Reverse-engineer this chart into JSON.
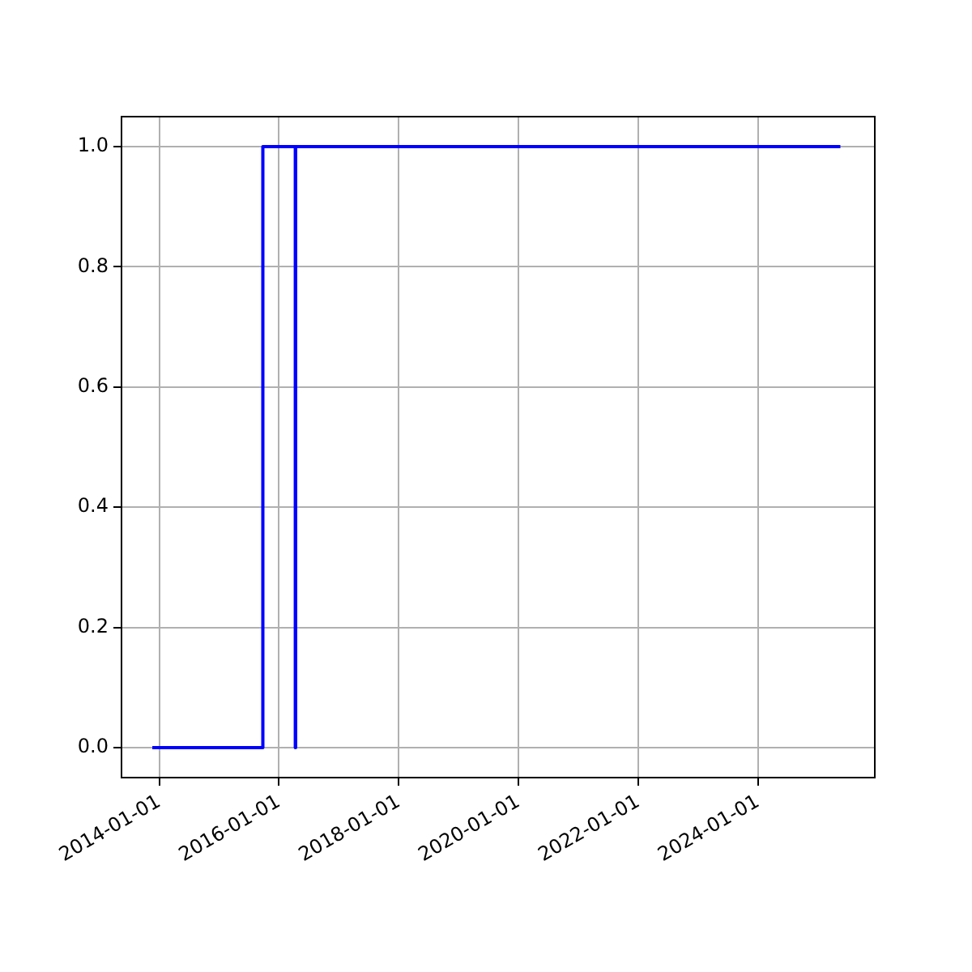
{
  "chart_data": {
    "type": "step",
    "x": [
      "2013-11-20",
      "2015-09-25",
      "2016-04-10",
      "2016-04-12",
      "2025-05-17"
    ],
    "series": [
      {
        "color": "#0000ff",
        "values": [
          0,
          1,
          0,
          1,
          1
        ]
      }
    ],
    "xlim": [
      "2013-05-16",
      "2025-12-13"
    ],
    "xticks": [
      "2014-01-01",
      "2016-01-01",
      "2018-01-01",
      "2020-01-01",
      "2022-01-01",
      "2024-01-01"
    ],
    "ylim": [
      -0.05,
      1.05
    ],
    "yticks": [
      {
        "value": 0,
        "label": "0.0"
      },
      {
        "value": 0.2,
        "label": "0.2"
      },
      {
        "value": 0.4,
        "label": "0.4"
      },
      {
        "value": 0.6,
        "label": "0.6"
      },
      {
        "value": 0.8,
        "label": "0.8"
      },
      {
        "value": 1,
        "label": "1.0"
      }
    ],
    "grid": true,
    "legend": false
  }
}
